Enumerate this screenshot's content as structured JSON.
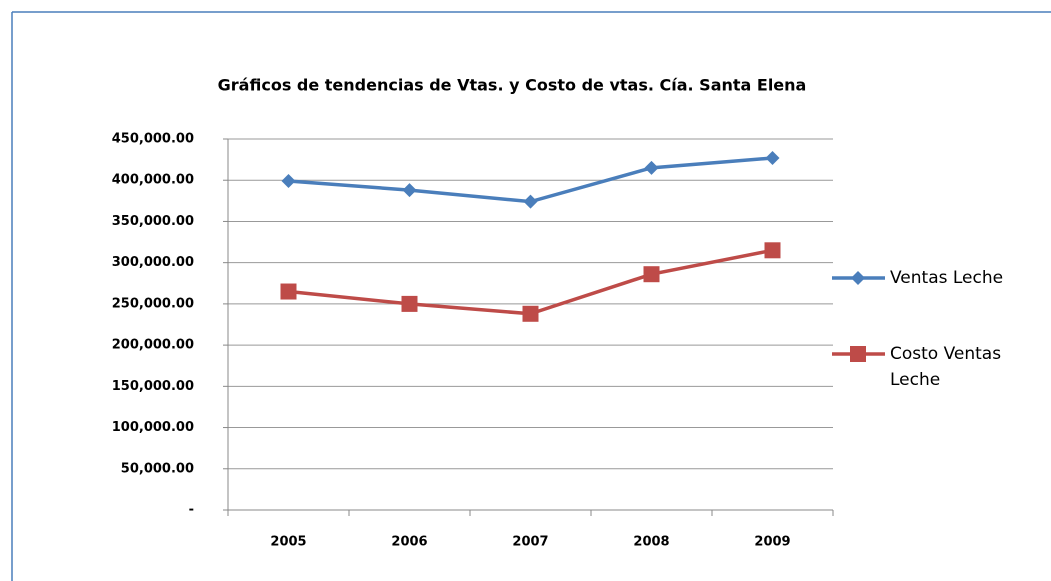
{
  "chart_data": {
    "type": "line",
    "title": "Gráficos de tendencias  de Vtas. y Costo de vtas. Cía. Santa Elena",
    "categories": [
      "2005",
      "2006",
      "2007",
      "2008",
      "2009"
    ],
    "series": [
      {
        "name": "Ventas Leche",
        "color": "#4a7ebb",
        "marker": "diamond",
        "values": [
          399000,
          388000,
          374000,
          415000,
          427000
        ]
      },
      {
        "name": "Costo Ventas Leche",
        "color": "#be4b48",
        "marker": "square",
        "values": [
          265000,
          250000,
          238000,
          286000,
          315000
        ]
      }
    ],
    "ylim": [
      0,
      450000
    ],
    "yticks": [
      {
        "value": 0,
        "label": "-"
      },
      {
        "value": 50000,
        "label": "50,000.00"
      },
      {
        "value": 100000,
        "label": "100,000.00"
      },
      {
        "value": 150000,
        "label": "150,000.00"
      },
      {
        "value": 200000,
        "label": "200,000.00"
      },
      {
        "value": 250000,
        "label": "250,000.00"
      },
      {
        "value": 300000,
        "label": "300,000.00"
      },
      {
        "value": 350000,
        "label": "350,000.00"
      },
      {
        "value": 400000,
        "label": "400,000.00"
      },
      {
        "value": 450000,
        "label": "450,000.00"
      }
    ],
    "grid": true,
    "legend": "right"
  }
}
